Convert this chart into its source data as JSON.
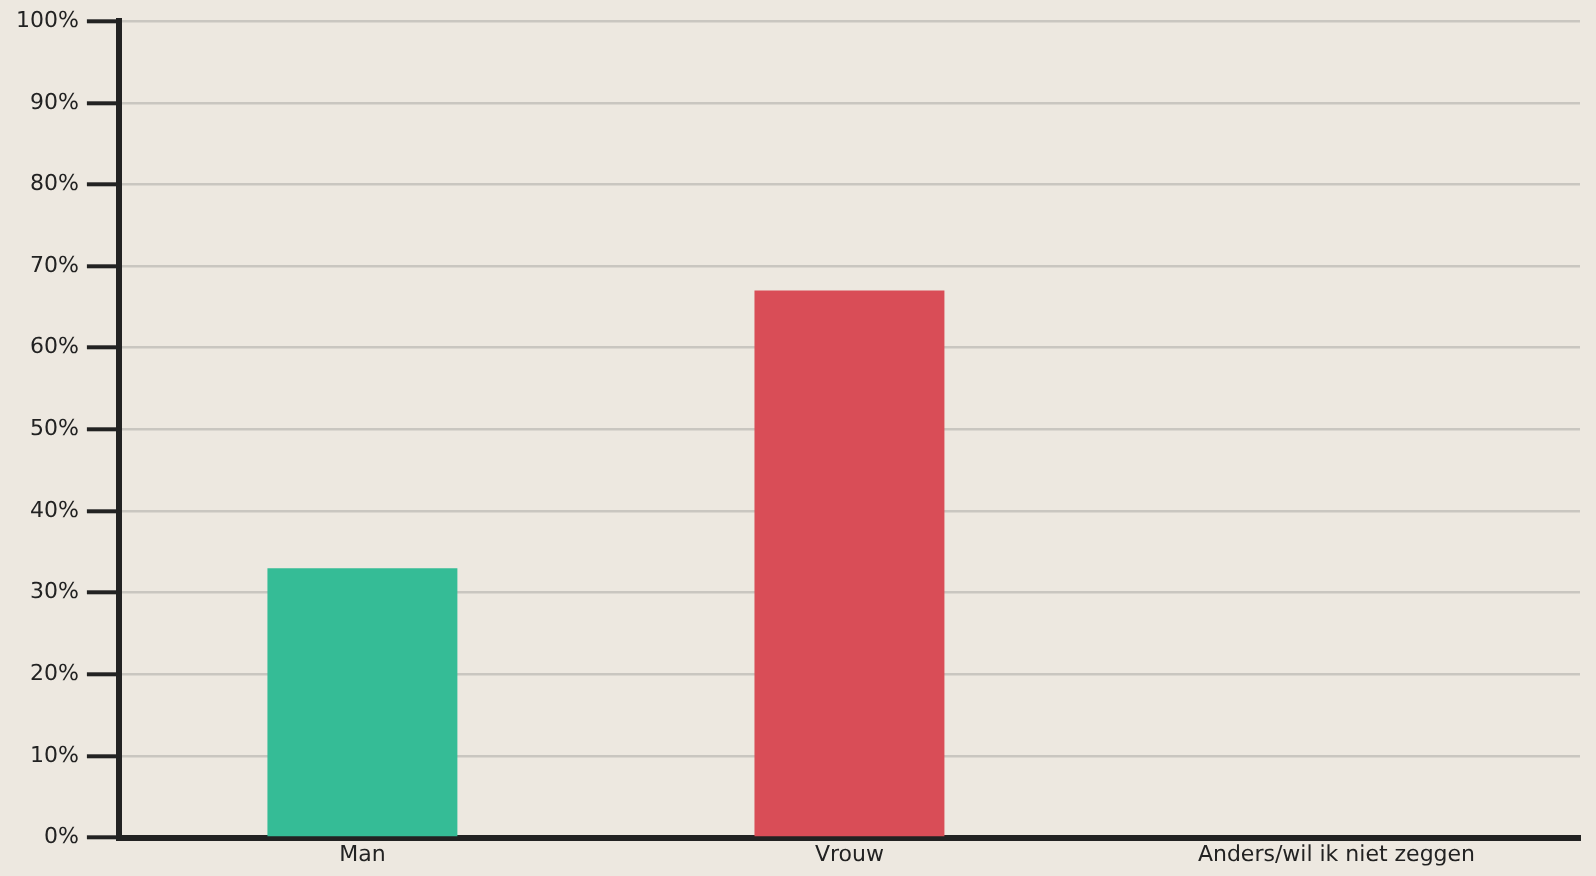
{
  "chart_data": {
    "type": "bar",
    "categories": [
      "Man",
      "Vrouw",
      "Anders/wil ik niet zeggen"
    ],
    "values": [
      33,
      67,
      0
    ],
    "colors": [
      "#35bc96",
      "#d94d57",
      "#35bc96"
    ],
    "ylim": [
      0,
      100
    ],
    "yticks": [
      {
        "value": 0,
        "label": "0%"
      },
      {
        "value": 10,
        "label": "10%"
      },
      {
        "value": 20,
        "label": "20%"
      },
      {
        "value": 30,
        "label": "30%"
      },
      {
        "value": 40,
        "label": "40%"
      },
      {
        "value": 50,
        "label": "50%"
      },
      {
        "value": 60,
        "label": "60%"
      },
      {
        "value": 70,
        "label": "70%"
      },
      {
        "value": 80,
        "label": "80%"
      },
      {
        "value": 90,
        "label": "90%"
      },
      {
        "value": 100,
        "label": "100%"
      }
    ],
    "grid": "y",
    "legend": false
  }
}
